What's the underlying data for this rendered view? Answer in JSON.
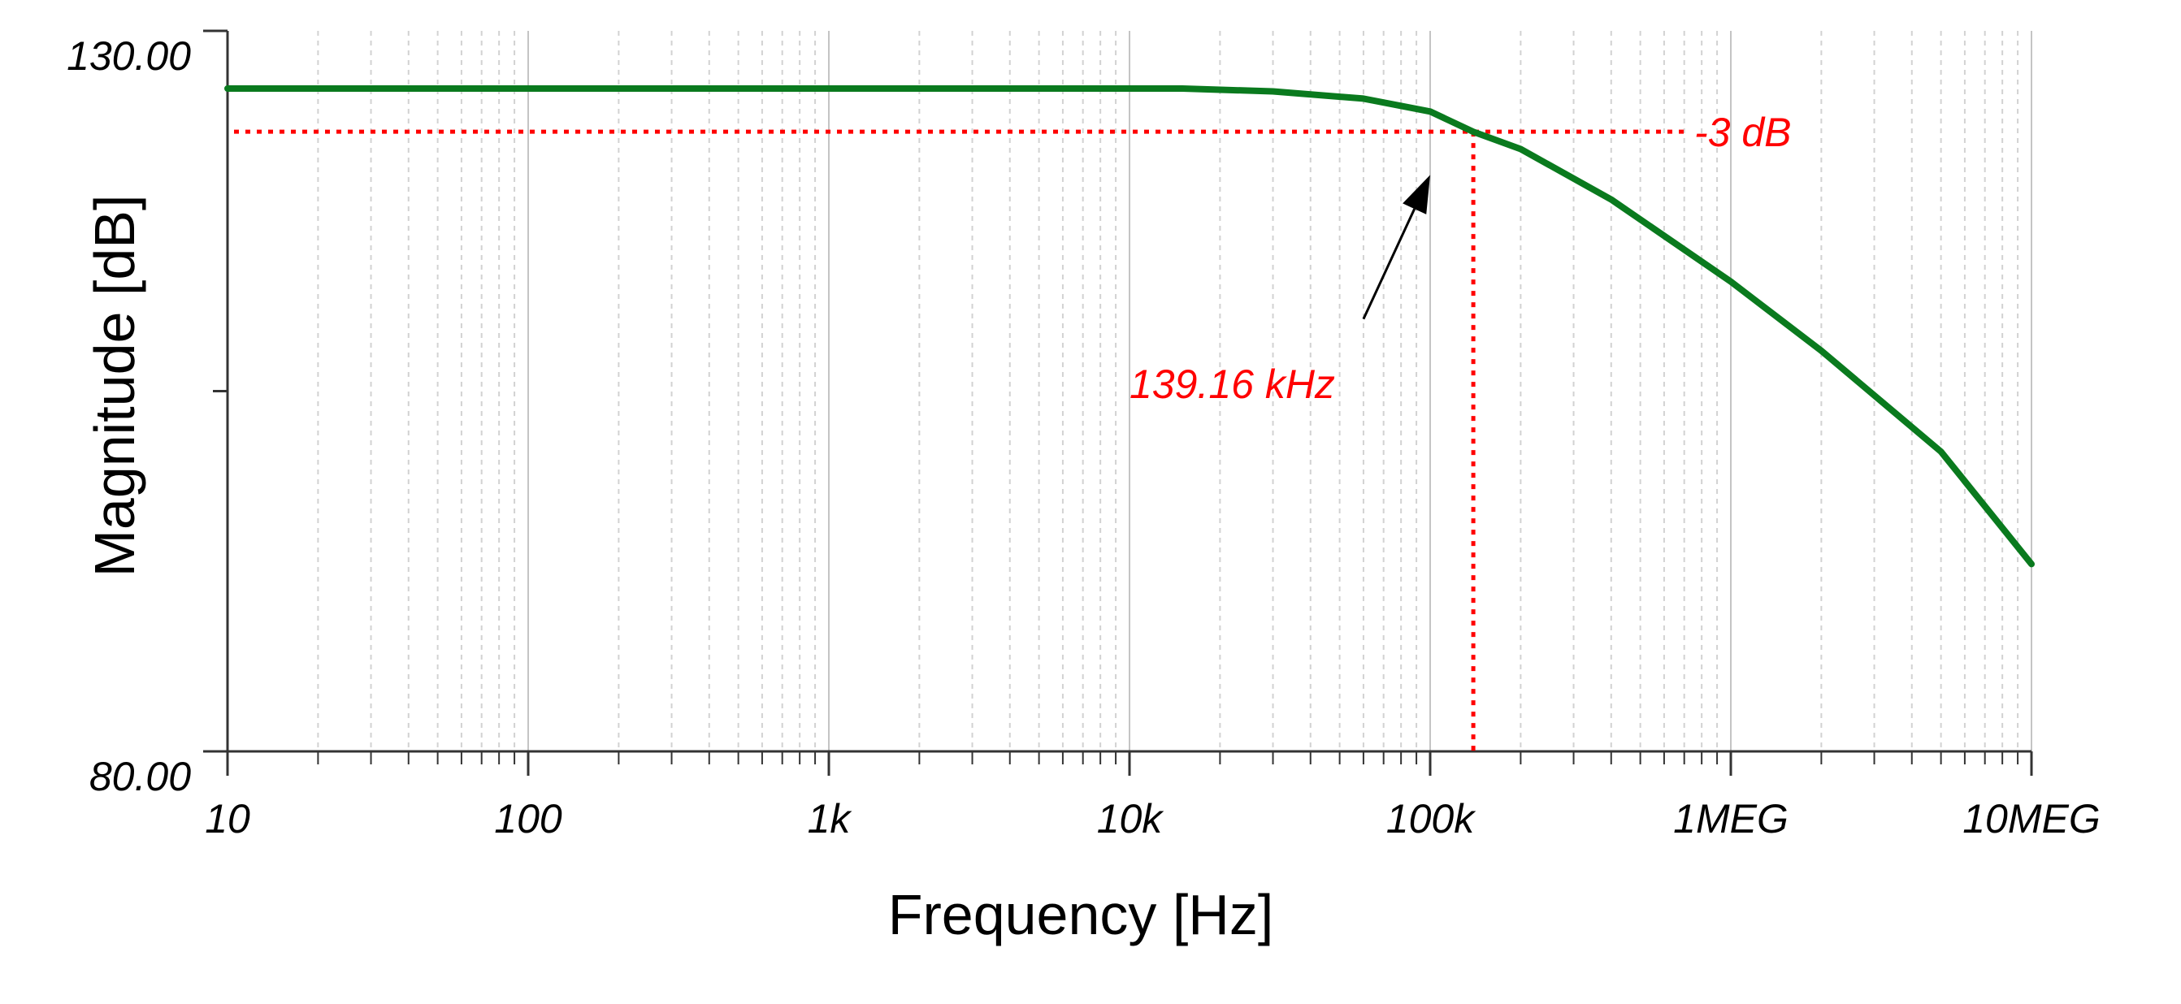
{
  "chart_data": {
    "type": "line",
    "title": "",
    "xlabel": "Frequency [Hz]",
    "ylabel": "Magnitude [dB]",
    "xscale": "log",
    "xlim": [
      10,
      10000000
    ],
    "ylim": [
      80,
      130
    ],
    "x_ticks": [
      {
        "value": 10,
        "label": "10"
      },
      {
        "value": 100,
        "label": "100"
      },
      {
        "value": 1000,
        "label": "1k"
      },
      {
        "value": 10000,
        "label": "10k"
      },
      {
        "value": 100000,
        "label": "100k"
      },
      {
        "value": 1000000,
        "label": "1MEG"
      },
      {
        "value": 10000000,
        "label": "10MEG"
      }
    ],
    "y_ticks": [
      {
        "value": 130,
        "label": "130.00"
      },
      {
        "value": 80,
        "label": "80.00"
      }
    ],
    "y_minor_ticks": [
      105
    ],
    "grid": true,
    "series": [
      {
        "color": "#0a7a1e",
        "points": [
          {
            "x": 10,
            "y": 126
          },
          {
            "x": 1000,
            "y": 126
          },
          {
            "x": 15000,
            "y": 126
          },
          {
            "x": 30000,
            "y": 125.8
          },
          {
            "x": 60000,
            "y": 125.3
          },
          {
            "x": 100000,
            "y": 124.4
          },
          {
            "x": 139160,
            "y": 123
          },
          {
            "x": 200000,
            "y": 121.8
          },
          {
            "x": 400000,
            "y": 118.3
          },
          {
            "x": 1000000,
            "y": 112.6
          },
          {
            "x": 2000000,
            "y": 107.8
          },
          {
            "x": 5000000,
            "y": 100.8
          },
          {
            "x": 10000000,
            "y": 93
          }
        ]
      }
    ],
    "reference_lines": {
      "color": "#ff0000",
      "hline": {
        "y": 123,
        "x_end": 700000,
        "label": "-3 dB"
      },
      "vline": {
        "x": 139160
      }
    },
    "annotation": {
      "text": "139.16 kHz",
      "color": "#ff0000",
      "arrow_from": {
        "x": 60000,
        "y": 110
      },
      "arrow_to": {
        "x": 100000,
        "y": 120
      }
    }
  }
}
